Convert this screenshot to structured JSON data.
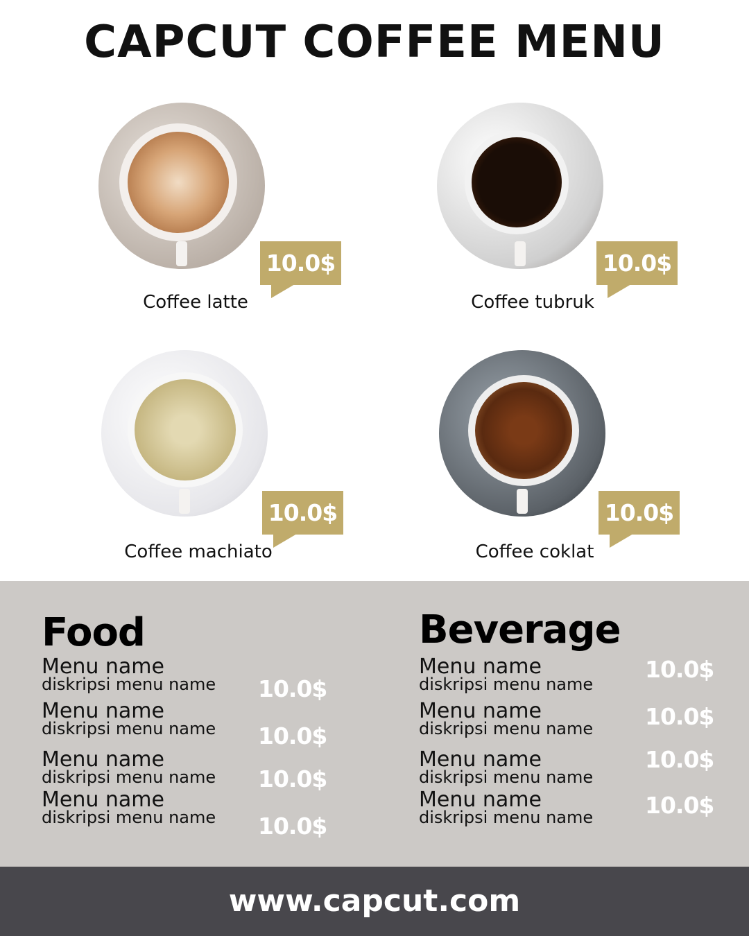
{
  "title": "CAPCUT COFFEE MENU",
  "colors": {
    "accent": "#c0ab6b",
    "band": "#ccc9c6",
    "footer": "#48474c"
  },
  "featured": [
    {
      "name": "Coffee latte",
      "price": "10.0$"
    },
    {
      "name": "Coffee tubruk",
      "price": "10.0$"
    },
    {
      "name": "Coffee machiato",
      "price": "10.0$"
    },
    {
      "name": "Coffee coklat",
      "price": "10.0$"
    }
  ],
  "food": {
    "title": "Food",
    "items": [
      {
        "name": "Menu name",
        "desc": "diskripsi menu name",
        "price": "10.0$"
      },
      {
        "name": "Menu name",
        "desc": "diskripsi menu name",
        "price": "10.0$"
      },
      {
        "name": "Menu name",
        "desc": "diskripsi menu name",
        "price": "10.0$"
      },
      {
        "name": "Menu name",
        "desc": "diskripsi menu name",
        "price": "10.0$"
      }
    ]
  },
  "beverage": {
    "title": "Beverage",
    "items": [
      {
        "name": "Menu name",
        "desc": "diskripsi menu name",
        "price": "10.0$"
      },
      {
        "name": "Menu name",
        "desc": "diskripsi menu name",
        "price": "10.0$"
      },
      {
        "name": "Menu name",
        "desc": "diskripsi menu name",
        "price": "10.0$"
      },
      {
        "name": "Menu name",
        "desc": "diskripsi menu name",
        "price": "10.0$"
      }
    ]
  },
  "footer": {
    "url": "www.capcut.com"
  }
}
